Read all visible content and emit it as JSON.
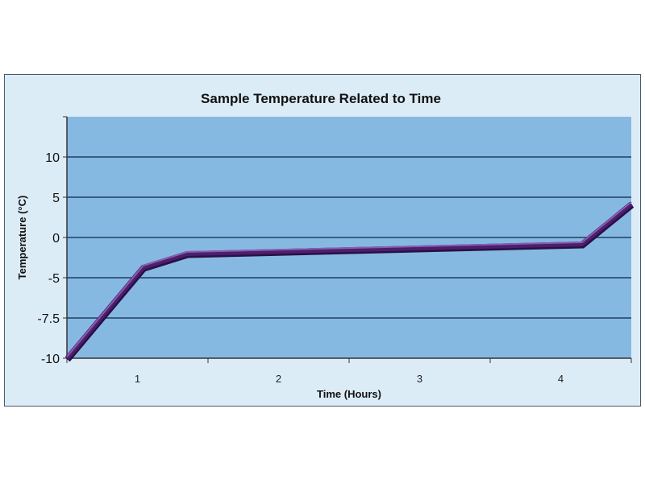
{
  "chart_data": {
    "type": "line",
    "title": "Sample Temperature Related to Time",
    "xlabel": "Time (Hours)",
    "ylabel": "Temperature (°C)",
    "x_categories": [
      "1",
      "2",
      "3",
      "4"
    ],
    "xlim": [
      0.5,
      4.5
    ],
    "y_ticks": [
      -10,
      -7.5,
      -5,
      0,
      5,
      10
    ],
    "y_tick_labels": [
      "-10",
      "-7.5",
      "-5",
      "0",
      "5",
      "10"
    ],
    "y_top": 15,
    "grid": true,
    "series": [
      {
        "name": "Temperature",
        "x": [
          0.5,
          1.04,
          1.35,
          4.15,
          4.5
        ],
        "y": [
          -10,
          -3.7,
          -2,
          -0.8,
          4.2
        ],
        "color": "#4b1f6e"
      }
    ],
    "colors": {
      "plot_bg": "#86b9e2",
      "frame_bg": "#dcecf7",
      "grid": "#1f3f5f"
    }
  }
}
